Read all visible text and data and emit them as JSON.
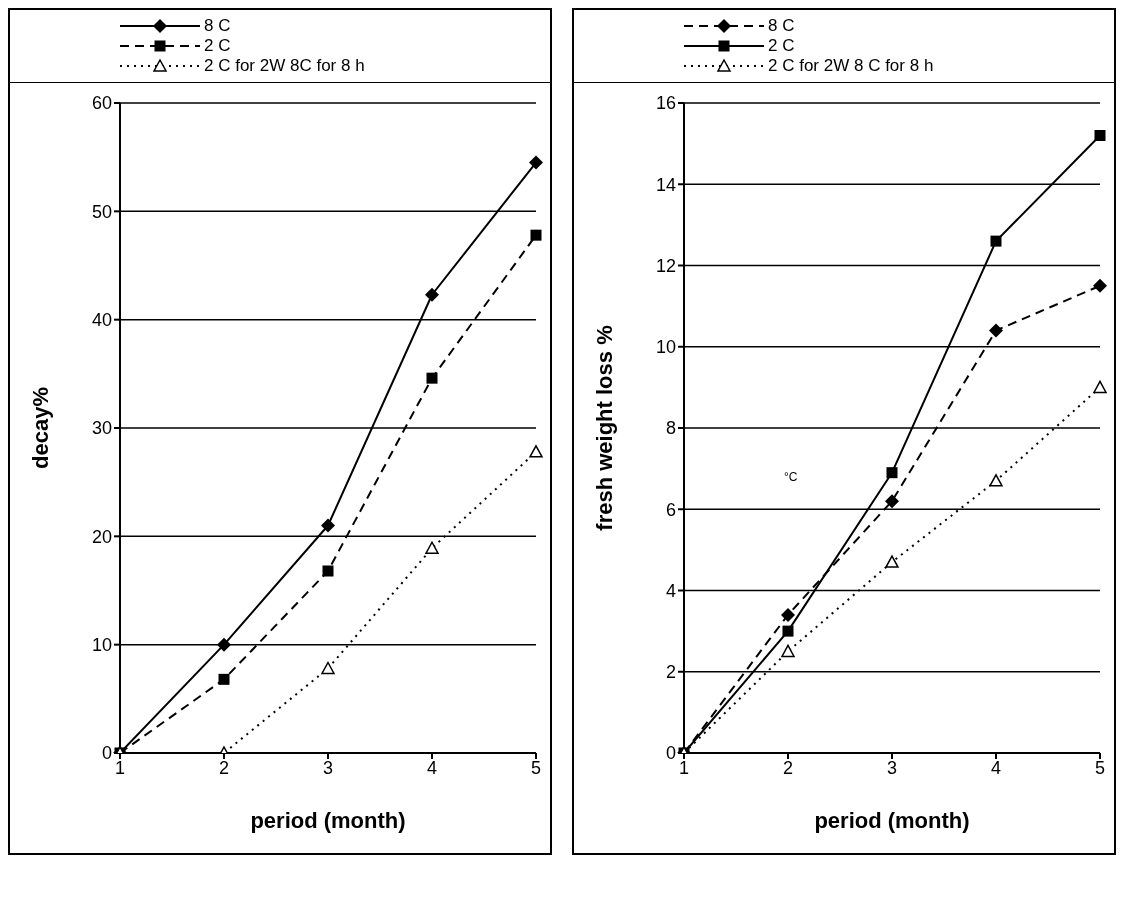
{
  "chart_data": [
    {
      "type": "line",
      "xlabel": "period (month)",
      "ylabel": "decay%",
      "categories": [
        "1",
        "2",
        "3",
        "4",
        "5"
      ],
      "ylim": [
        0,
        60
      ],
      "yticks": [
        0,
        10,
        20,
        30,
        40,
        50,
        60
      ],
      "grid": "y",
      "legend": "top",
      "series": [
        {
          "name": "8 C",
          "color": "#000000",
          "marker": "diamond",
          "line_style": "solid",
          "values": [
            0,
            10,
            21,
            42.3,
            54.5
          ]
        },
        {
          "name": "2 C",
          "color": "#000000",
          "marker": "square",
          "line_style": "dashed",
          "values": [
            0,
            6.8,
            16.8,
            34.6,
            47.8
          ]
        },
        {
          "name": "2 C for 2W 8C for 8 h",
          "color": "#000000",
          "marker": "triangle",
          "line_style": "dotted",
          "values": [
            0,
            0,
            7.8,
            18.9,
            27.8
          ]
        }
      ]
    },
    {
      "type": "line",
      "xlabel": "period (month)",
      "ylabel": "fresh weight loss %",
      "categories": [
        "1",
        "2",
        "3",
        "4",
        "5"
      ],
      "ylim": [
        0,
        16
      ],
      "yticks": [
        0,
        2,
        4,
        6,
        8,
        10,
        12,
        14,
        16
      ],
      "grid": "y",
      "legend": "top",
      "annotations": [
        "°C"
      ],
      "series": [
        {
          "name": "8 C",
          "color": "#000000",
          "marker": "diamond",
          "line_style": "dashed",
          "values": [
            0,
            3.4,
            6.2,
            10.4,
            11.5
          ]
        },
        {
          "name": "2 C",
          "color": "#000000",
          "marker": "square",
          "line_style": "solid",
          "values": [
            0,
            3.0,
            6.9,
            12.6,
            15.2
          ]
        },
        {
          "name": "2 C for 2W 8 C for 8 h",
          "color": "#000000",
          "marker": "triangle",
          "line_style": "dotted",
          "values": [
            0,
            2.5,
            4.7,
            6.7,
            9.0
          ]
        }
      ]
    }
  ]
}
